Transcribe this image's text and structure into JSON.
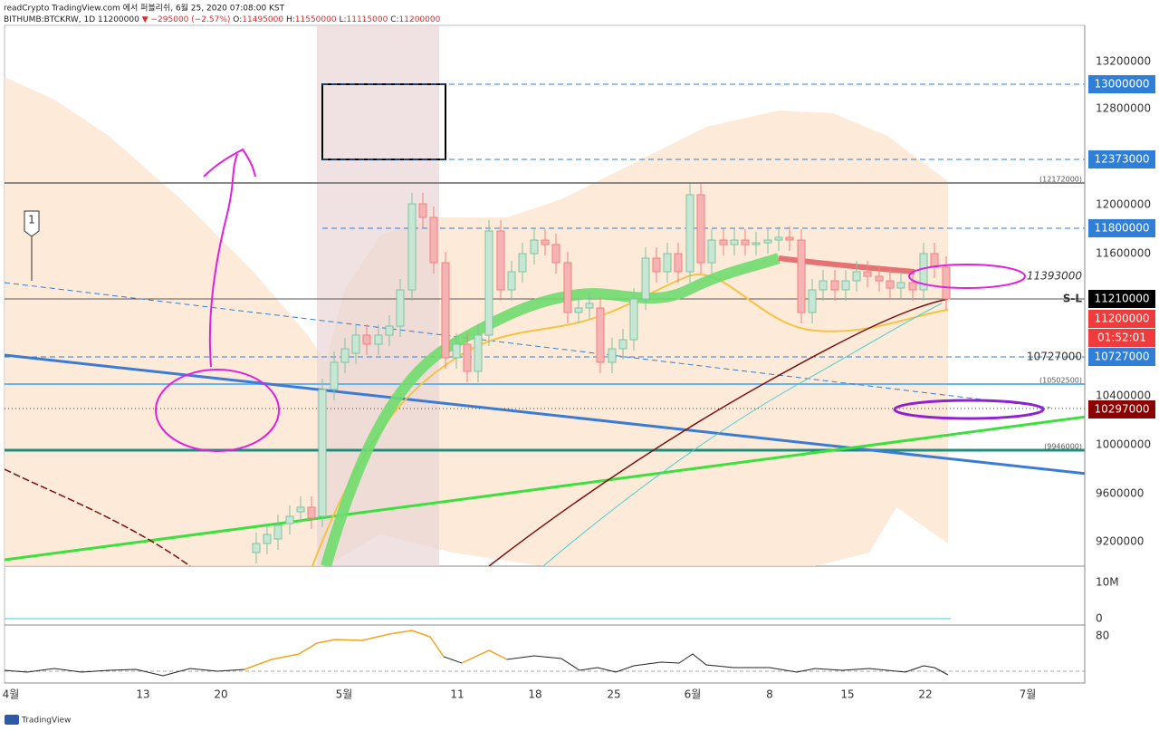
{
  "header": {
    "publisher": "readCrypto TradingView.com 에서 퍼블리쉬, 6월 25, 2020 07:08:00 KST",
    "ticker": "BITHUMB:BTCKRW, 1D",
    "last": "11200000",
    "change": "▼ −295000 (−2.57%)",
    "ohlc": [
      "O:",
      "11495000",
      "H:",
      "11550000",
      "L:",
      "11115000",
      "C:",
      "11200000"
    ]
  },
  "price_axis": [
    "13200000",
    "12800000",
    "12000000",
    "11600000",
    "10400000",
    "10000000",
    "9600000",
    "9200000"
  ],
  "price_tags": [
    "13000000",
    "12373000",
    "11800000",
    "11210000",
    "11200000",
    "01:52:01",
    "10727000",
    "10297000"
  ],
  "chart_labels": {
    "callout": "1",
    "sl": "S-L",
    "level_a": "11393000",
    "level_b": "10727000",
    "ref_1": "(12172000)",
    "ref_2": "(10502500)",
    "ref_3": "(9946000)"
  },
  "volume_axis": [
    "10M",
    "0"
  ],
  "rsi_axis": [
    "80"
  ],
  "date_axis": [
    "4월",
    "13",
    "20",
    "5월",
    "11",
    "18",
    "25",
    "6월",
    "8",
    "15",
    "22",
    "7월"
  ],
  "footer": "TradingView"
}
